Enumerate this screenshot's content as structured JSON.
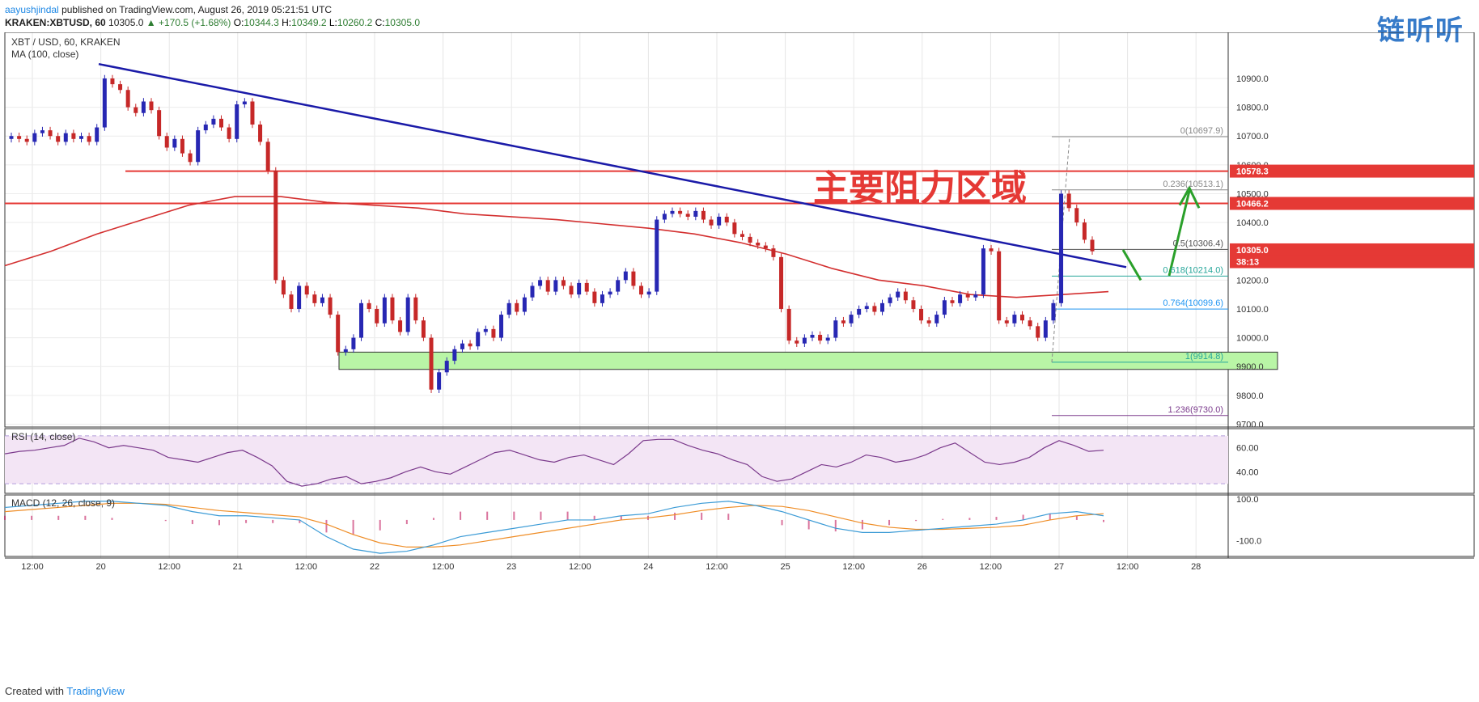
{
  "header": {
    "author": "aayushjindal",
    "published_text": "published on TradingView.com, August 26, 2019 05:21:51 UTC",
    "symbol": "KRAKEN:XBTUSD, 60",
    "last": "10305.0",
    "change": "+170.5 (+1.68%)",
    "o_label": "O:",
    "o_value": "10344.3",
    "h_label": "H:",
    "h_value": "10349.2",
    "l_label": "L:",
    "l_value": "10260.2",
    "c_label": "C:",
    "c_value": "10305.0"
  },
  "footer": {
    "created_with": "Created with",
    "brand": "TradingView"
  },
  "watermark": "链听听",
  "colors": {
    "bull": "#2727b3",
    "bear": "#c62828",
    "ma": "#d32f2f",
    "trendline": "#1a1aa8",
    "resistance": "#e53935",
    "support_fill": "#b9f5a6",
    "arrow": "#2aa02a",
    "rsi": "#7b3a8c",
    "rsi_band": "#f3e5f5",
    "macd": "#3b9bd6",
    "signal": "#ef8d26",
    "hist": "#c2185b"
  },
  "chart_data": {
    "type": "candlestick",
    "title": "XBT / USD, 60, KRAKEN",
    "indicator_label": "MA (100, close)",
    "overlay_text": "主要阻力区域",
    "ylim": [
      9690,
      11060
    ],
    "y_ticks": [
      "10900.0",
      "10800.0",
      "10700.0",
      "10600.0",
      "10500.0",
      "10400.0",
      "10300.0",
      "10200.0",
      "10100.0",
      "10000.0",
      "9900.0",
      "9800.0",
      "9700.0"
    ],
    "y_tick_values": [
      10900,
      10800,
      10700,
      10600,
      10500,
      10400,
      10300,
      10200,
      10100,
      10000,
      9900,
      9800,
      9700
    ],
    "x_ticks": [
      "12:00",
      "20",
      "12:00",
      "21",
      "12:00",
      "22",
      "12:00",
      "23",
      "12:00",
      "24",
      "12:00",
      "25",
      "12:00",
      "26",
      "12:00",
      "27",
      "12:00",
      "28"
    ],
    "price_tags": [
      {
        "label": "10578.3",
        "value": 10578.3,
        "color": "#e53935"
      },
      {
        "label": "10466.2",
        "value": 10466.2,
        "color": "#e53935"
      },
      {
        "label": "10305.0",
        "value": 10305.0,
        "color": "#e53935"
      },
      {
        "label": "38:13",
        "value": 10264,
        "color": "#e53935"
      }
    ],
    "resistance_levels": [
      10578.3,
      10466.2
    ],
    "support_zone": [
      9890,
      9950
    ],
    "fib_levels": [
      {
        "label": "0(10697.9)",
        "value": 10697.9,
        "color": "#888888"
      },
      {
        "label": "0.236(10513.1)",
        "value": 10513.1,
        "color": "#888888"
      },
      {
        "label": "0.5(10306.4)",
        "value": 10306.4,
        "color": "#555555"
      },
      {
        "label": "0.618(10214.0)",
        "value": 10214.0,
        "color": "#26a69a"
      },
      {
        "label": "0.764(10099.6)",
        "value": 10099.6,
        "color": "#2196f3"
      },
      {
        "label": "1(9914.8)",
        "value": 9914.8,
        "color": "#26a69a"
      },
      {
        "label": "1.236(9730.0)",
        "value": 9730.0,
        "color": "#7b3a8c"
      }
    ],
    "trendline": [
      {
        "value": 10950
      },
      {
        "value": 10245
      }
    ],
    "ma100": [
      10250,
      10300,
      10360,
      10410,
      10460,
      10490,
      10490,
      10470,
      10460,
      10450,
      10430,
      10420,
      10410,
      10395,
      10380,
      10360,
      10330,
      10290,
      10240,
      10200,
      10180,
      10150,
      10140,
      10150,
      10160
    ],
    "closes": [
      10700,
      10690,
      10680,
      10710,
      10720,
      10700,
      10680,
      10710,
      10690,
      10700,
      10680,
      10730,
      10900,
      10880,
      10860,
      10800,
      10780,
      10820,
      10790,
      10700,
      10660,
      10690,
      10640,
      10610,
      10720,
      10740,
      10760,
      10730,
      10690,
      10810,
      10820,
      10740,
      10680,
      10580,
      10200,
      10150,
      10100,
      10180,
      10150,
      10120,
      10140,
      10080,
      9950,
      9960,
      10000,
      10120,
      10100,
      10050,
      10140,
      10060,
      10020,
      10140,
      10060,
      10000,
      9820,
      9880,
      9920,
      9960,
      9980,
      9970,
      10020,
      10030,
      10000,
      10080,
      10120,
      10090,
      10140,
      10180,
      10200,
      10160,
      10200,
      10180,
      10150,
      10190,
      10160,
      10120,
      10150,
      10160,
      10200,
      10230,
      10180,
      10150,
      10160,
      10410,
      10430,
      10440,
      10430,
      10420,
      10440,
      10410,
      10390,
      10420,
      10400,
      10360,
      10350,
      10330,
      10320,
      10310,
      10280,
      10100,
      9990,
      9980,
      10000,
      10010,
      9990,
      10000,
      10060,
      10050,
      10080,
      10100,
      10110,
      10090,
      10120,
      10140,
      10160,
      10130,
      10100,
      10060,
      10050,
      10080,
      10130,
      10120,
      10150,
      10140,
      10150,
      10310,
      10300,
      10060,
      10050,
      10080,
      10060,
      10040,
      10000,
      10060,
      10120,
      10500,
      10450,
      10400,
      10340,
      10300
    ],
    "rsi": {
      "label": "RSI (14, close)",
      "y_ticks": [
        "60.00",
        "40.00"
      ],
      "y_tick_values": [
        60,
        40
      ],
      "ylim": [
        22,
        76
      ],
      "band": [
        30,
        70
      ],
      "values": [
        55,
        57,
        58,
        60,
        62,
        68,
        65,
        60,
        62,
        60,
        58,
        52,
        50,
        48,
        52,
        56,
        58,
        52,
        45,
        32,
        28,
        30,
        34,
        36,
        30,
        32,
        35,
        40,
        44,
        40,
        38,
        44,
        50,
        56,
        58,
        54,
        50,
        48,
        52,
        54,
        50,
        46,
        55,
        66,
        67,
        67,
        62,
        58,
        55,
        50,
        46,
        36,
        32,
        34,
        40,
        46,
        44,
        48,
        54,
        52,
        48,
        50,
        54,
        60,
        64,
        56,
        48,
        46,
        48,
        52,
        60,
        66,
        62,
        57,
        58
      ]
    },
    "macd": {
      "label": "MACD (12, 26, close, 9)",
      "y_ticks": [
        "100.0",
        "-100.0"
      ],
      "y_tick_values": [
        100,
        -100
      ],
      "ylim": [
        -175,
        120
      ],
      "macd": [
        60,
        70,
        80,
        90,
        90,
        80,
        70,
        40,
        20,
        20,
        10,
        0,
        -80,
        -140,
        -160,
        -150,
        -120,
        -80,
        -60,
        -40,
        -20,
        0,
        0,
        20,
        30,
        60,
        80,
        90,
        70,
        40,
        0,
        -40,
        -60,
        -60,
        -50,
        -40,
        -30,
        -20,
        0,
        30,
        40,
        20
      ],
      "signal": [
        40,
        50,
        60,
        70,
        80,
        80,
        75,
        60,
        45,
        35,
        25,
        15,
        -20,
        -70,
        -110,
        -130,
        -130,
        -120,
        -100,
        -80,
        -60,
        -40,
        -20,
        0,
        10,
        25,
        45,
        60,
        70,
        65,
        45,
        15,
        -15,
        -35,
        -45,
        -45,
        -40,
        -35,
        -25,
        0,
        20,
        30
      ],
      "hist": [
        20,
        20,
        20,
        20,
        10,
        0,
        -5,
        -20,
        -25,
        -15,
        -15,
        -15,
        -60,
        -70,
        -50,
        -20,
        10,
        40,
        40,
        40,
        40,
        40,
        20,
        20,
        20,
        35,
        35,
        30,
        0,
        -25,
        -45,
        -55,
        -45,
        -25,
        -5,
        5,
        10,
        15,
        25,
        30,
        20,
        -10
      ]
    }
  }
}
